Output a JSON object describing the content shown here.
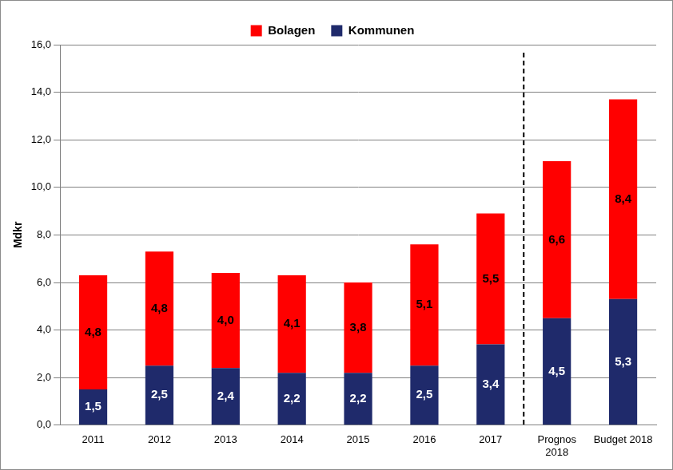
{
  "chart_data": {
    "type": "bar",
    "categories": [
      "2011",
      "2012",
      "2013",
      "2014",
      "2015",
      "2016",
      "2017",
      "Prognos 2018",
      "Budget 2018"
    ],
    "series": [
      {
        "name": "Kommunen",
        "color": "#1f2a6b",
        "values": [
          1.5,
          2.5,
          2.4,
          2.2,
          2.2,
          2.5,
          3.4,
          4.5,
          5.3
        ],
        "value_labels": [
          "1,5",
          "2,5",
          "2,4",
          "2,2",
          "2,2",
          "2,5",
          "3,4",
          "4,5",
          "5,3"
        ]
      },
      {
        "name": "Bolagen",
        "color": "#ff0000",
        "values": [
          4.8,
          4.8,
          4.0,
          4.1,
          3.8,
          5.1,
          5.5,
          6.6,
          8.4
        ],
        "value_labels": [
          "4,8",
          "4,8",
          "4,0",
          "4,1",
          "3,8",
          "5,1",
          "5,5",
          "6,6",
          "8,4"
        ]
      }
    ],
    "y_label": "Mdkr",
    "ylim": [
      0,
      16
    ],
    "yticks": [
      {
        "value": 0,
        "label": "0,0"
      },
      {
        "value": 2,
        "label": "2,0"
      },
      {
        "value": 4,
        "label": "4,0"
      },
      {
        "value": 6,
        "label": "6,0"
      },
      {
        "value": 8,
        "label": "8,0"
      },
      {
        "value": 10,
        "label": "10,0"
      },
      {
        "value": 12,
        "label": "12,0"
      },
      {
        "value": 14,
        "label": "14,0"
      },
      {
        "value": 16,
        "label": "16,0"
      }
    ],
    "grid": true,
    "stacked": true,
    "legend": "top",
    "data_labels": true
  }
}
